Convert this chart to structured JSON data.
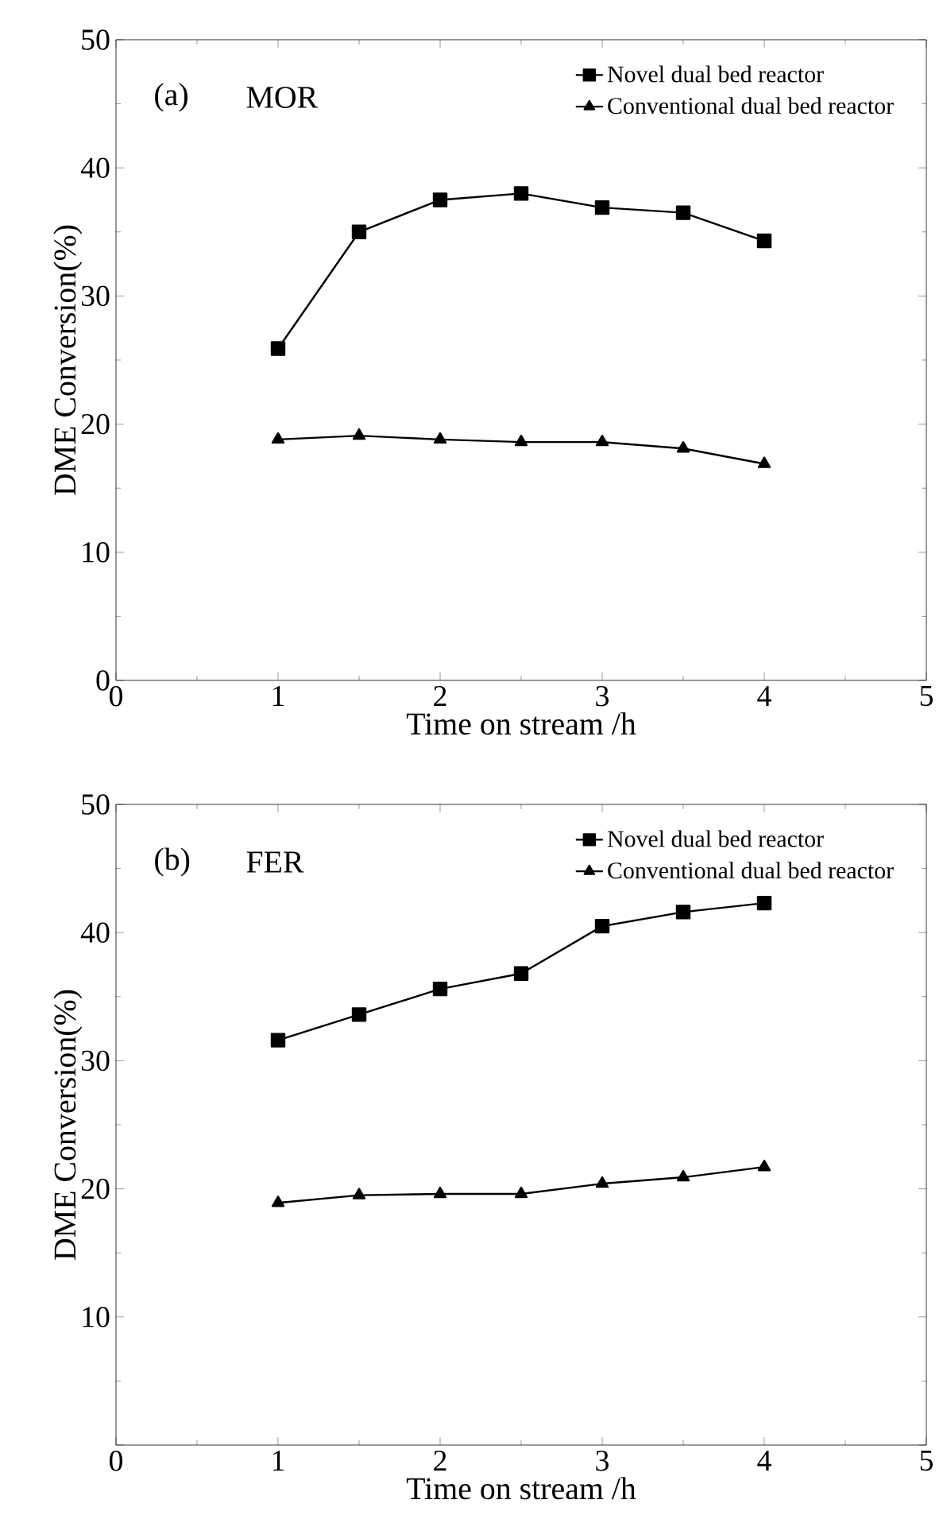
{
  "chart_data": [
    {
      "type": "line",
      "x": [
        1,
        1.5,
        2,
        2.5,
        3,
        3.5,
        4
      ],
      "xlabel": "Time on stream /h",
      "ylabel": "DME Conversion(%)",
      "annotations": [
        "(a)",
        "MOR"
      ],
      "xlim": [
        0,
        5
      ],
      "ylim": [
        0,
        50
      ],
      "xticks": [
        0,
        1,
        2,
        3,
        4,
        5
      ],
      "yticks": [
        0,
        10,
        20,
        30,
        40,
        50
      ],
      "legend": "top right",
      "grid": false,
      "line_style": "solid",
      "series": [
        {
          "name": "Novel dual bed reactor",
          "color": "#000000",
          "marker": "square",
          "values": [
            25.9,
            35.0,
            37.5,
            38.0,
            36.9,
            36.5,
            34.3
          ]
        },
        {
          "name": "Conventional dual bed reactor",
          "color": "#000000",
          "marker": "triangle",
          "values": [
            18.8,
            19.1,
            18.8,
            18.6,
            18.6,
            18.1,
            16.9
          ]
        }
      ]
    },
    {
      "type": "line",
      "x": [
        1,
        1.5,
        2,
        2.5,
        3,
        3.5,
        4
      ],
      "xlabel": "Time on stream /h",
      "ylabel": "DME Conversion(%)",
      "annotations": [
        "(b)",
        "FER"
      ],
      "xlim": [
        0,
        5
      ],
      "ylim": [
        0,
        50
      ],
      "xticks": [
        0,
        1,
        2,
        3,
        4,
        5
      ],
      "yticks": [
        {
          "value": 0,
          "label": null
        },
        10,
        20,
        30,
        40,
        50
      ],
      "legend": "top right",
      "grid": false,
      "line_style": "solid",
      "series": [
        {
          "name": "Novel dual bed reactor",
          "color": "#000000",
          "marker": "square",
          "values": [
            31.6,
            33.6,
            35.6,
            36.8,
            40.5,
            41.6,
            42.3
          ]
        },
        {
          "name": "Conventional dual bed reactor",
          "color": "#000000",
          "marker": "triangle",
          "values": [
            18.9,
            19.5,
            19.6,
            19.6,
            20.4,
            20.9,
            21.7
          ]
        }
      ]
    }
  ]
}
